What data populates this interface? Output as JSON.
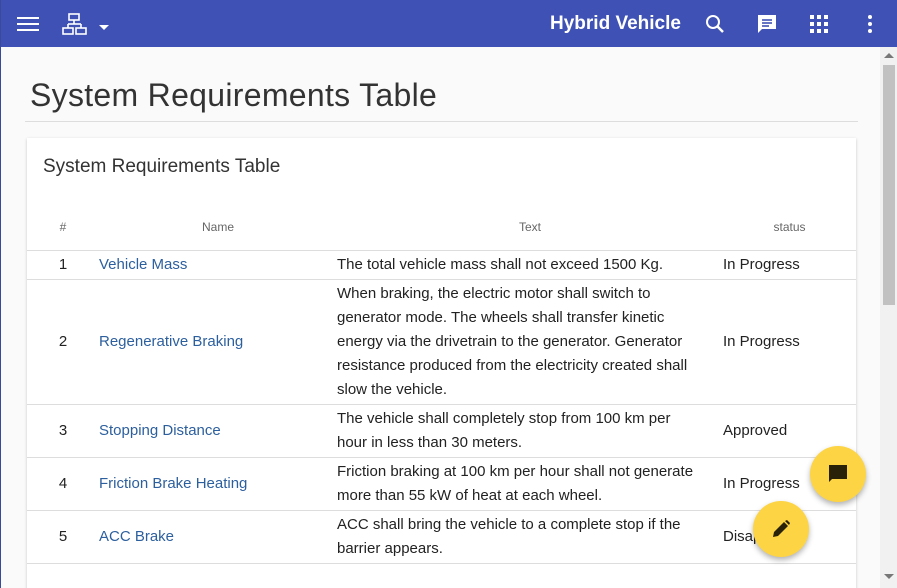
{
  "header": {
    "title": "Hybrid Vehicle",
    "icons": [
      "menu-icon",
      "sitemap-icon",
      "search-icon",
      "chat-icon",
      "apps-icon",
      "more-vert-icon"
    ]
  },
  "page": {
    "title": "System Requirements Table"
  },
  "card": {
    "title": "System Requirements Table",
    "columns": [
      "#",
      "Name",
      "Text",
      "status"
    ],
    "rows": [
      {
        "num": "1",
        "name": "Vehicle Mass",
        "text": "The total vehicle mass shall not exceed 1500 Kg.",
        "status": "In Progress"
      },
      {
        "num": "2",
        "name": "Regenerative Braking",
        "text": "When braking, the electric motor shall switch to generator mode. The wheels shall transfer kinetic energy via the drivetrain to the generator. Generator resistance produced from the electricity created shall slow the vehicle.",
        "status": "In Progress"
      },
      {
        "num": "3",
        "name": "Stopping Distance",
        "text": "The vehicle shall completely stop from 100 km per hour in less than 30 meters.",
        "status": "Approved"
      },
      {
        "num": "4",
        "name": "Friction Brake Heating",
        "text": "Friction braking at 100 km per hour shall not generate more than 55 kW of heat at each wheel.",
        "status": "In Progress"
      },
      {
        "num": "5",
        "name": "ACC Brake",
        "text": "ACC shall bring the vehicle to a complete stop if the barrier appears.",
        "status": "Disapproved"
      }
    ]
  },
  "colors": {
    "primary": "#3f51b5",
    "accent": "#fdd443",
    "link": "#2c5f9e"
  }
}
